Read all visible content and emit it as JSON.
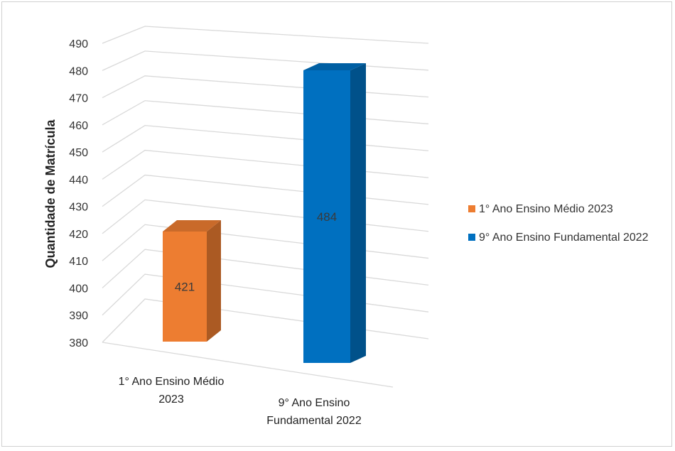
{
  "chart_data": {
    "type": "bar",
    "categories": [
      "1° Ano Ensino Médio 2023",
      "9° Ano Ensino Fundamental  2022"
    ],
    "category_label_lines": [
      [
        "1° Ano Ensino Médio",
        "2023"
      ],
      [
        "9° Ano Ensino",
        "Fundamental  2022"
      ]
    ],
    "values": [
      421,
      484
    ],
    "data_labels": [
      "421",
      "484"
    ],
    "ylabel": "Quantidade de Matrícula",
    "xlabel": "",
    "title": "",
    "ylim": [
      380,
      490
    ],
    "yticks": [
      "380",
      "390",
      "400",
      "410",
      "420",
      "430",
      "440",
      "450",
      "460",
      "470",
      "480",
      "490"
    ],
    "legend": {
      "position": "right",
      "entries": [
        {
          "label": "1° Ano Ensino Médio 2023",
          "color": "#ED7D31"
        },
        {
          "label": "9° Ano Ensino Fundamental  2022",
          "color": "#0070C0"
        }
      ]
    },
    "colors": [
      "#ED7D31",
      "#0070C0"
    ],
    "grid": true,
    "style": "3d-column"
  }
}
